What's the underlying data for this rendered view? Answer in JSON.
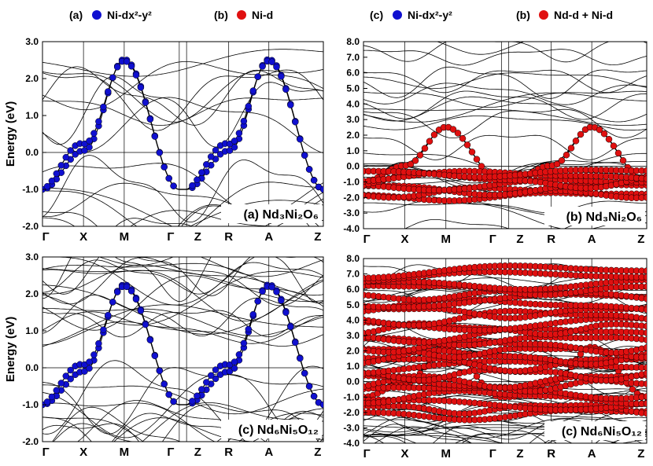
{
  "legend": [
    {
      "label": "(a)",
      "marker_color": "#1010d0",
      "text": "Ni-dx²-y²"
    },
    {
      "label": "(b)",
      "marker_color": "#e01010",
      "text": "Ni-d"
    },
    {
      "label": "(c)",
      "marker_color": "#1010d0",
      "text": "Ni-dx²-y²"
    },
    {
      "label": "(b)",
      "marker_color": "#e01010",
      "text": "Nd-d + Ni-d"
    }
  ],
  "chart_data": [
    {
      "type": "line",
      "panel": "top-left",
      "ylabel": "Energy (eV)",
      "ylim": [
        -2.0,
        3.0
      ],
      "yticks": [
        "3.0",
        "2.0",
        "1.0",
        "0.0",
        "-1.0",
        "-2.0"
      ],
      "xticks": [
        "Γ",
        "X",
        "M",
        "Γ",
        "Z",
        "R",
        "A",
        "Z"
      ],
      "label": "(a) Nd₃Ni₂O₆",
      "fermi_level": 0.0,
      "highlight_color": "#1010d0",
      "highlight": "Ni-dx²-y²"
    },
    {
      "type": "line",
      "panel": "top-right",
      "ylim": [
        -4.0,
        8.0
      ],
      "yticks": [
        "8.0",
        "7.0",
        "6.0",
        "5.0",
        "4.0",
        "3.0",
        "2.0",
        "1.0",
        "0.0",
        "-1.0",
        "-2.0",
        "-3.0",
        "-4.0"
      ],
      "xticks": [
        "Γ",
        "X",
        "M",
        "Γ",
        "Z",
        "R",
        "A",
        "Z"
      ],
      "label": "(b) Nd₃Ni₂O₆",
      "fermi_level": 0.0,
      "highlight_color": "#e01010",
      "highlight": "Ni-d"
    },
    {
      "type": "line",
      "panel": "bottom-left",
      "ylabel": "Energy (eV)",
      "ylim": [
        -2.0,
        3.0
      ],
      "yticks": [
        "3.0",
        "2.0",
        "1.0",
        "0.0",
        "-1.0",
        "-2.0"
      ],
      "xticks": [
        "Γ",
        "X",
        "M",
        "Γ",
        "Z",
        "R",
        "A",
        "Z"
      ],
      "label": "(c) Nd₆Ni₅O₁₂",
      "fermi_level": 0.0,
      "highlight_color": "#1010d0",
      "highlight": "Ni-dx²-y²"
    },
    {
      "type": "line",
      "panel": "bottom-right",
      "ylim": [
        -4.0,
        8.0
      ],
      "yticks": [
        "8.0",
        "7.0",
        "6.0",
        "5.0",
        "4.0",
        "3.0",
        "2.0",
        "1.0",
        "0.0",
        "-1.0",
        "-2.0",
        "-3.0",
        "-4.0"
      ],
      "xticks": [
        "Γ",
        "X",
        "M",
        "Γ",
        "Z",
        "R",
        "A",
        "Z"
      ],
      "label": "(c) Nd₆Ni₅O₁₂",
      "fermi_level": 0.0,
      "highlight_color": "#e01010",
      "highlight": "Nd-d + Ni-d"
    }
  ]
}
